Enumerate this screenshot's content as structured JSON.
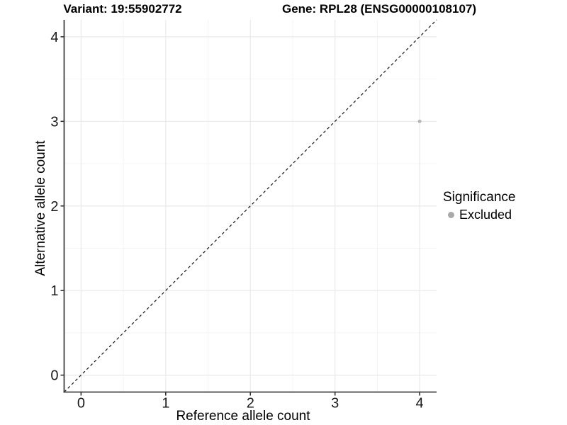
{
  "chart_data": {
    "type": "scatter",
    "titles": {
      "variant": "Variant: 19:55902772",
      "gene": "Gene: RPL28 (ENSG00000108107)"
    },
    "xlabel": "Reference allele count",
    "ylabel": "Alternative allele count",
    "xlim": [
      -0.2,
      4.2
    ],
    "ylim": [
      -0.2,
      4.2
    ],
    "x_ticks": [
      0,
      1,
      2,
      3,
      4
    ],
    "y_ticks": [
      0,
      1,
      2,
      3,
      4
    ],
    "x_minor_gridlines": [
      0.5,
      1.5,
      2.5,
      3.5
    ],
    "y_minor_gridlines": [
      0.5,
      1.5,
      2.5,
      3.5
    ],
    "grid": "major+minor",
    "identity_line": {
      "style": "dashed",
      "equation": "y = x",
      "color": "#141414"
    },
    "series": [
      {
        "name": "Excluded",
        "color": "#b8b8b8",
        "points": [
          {
            "x": 4,
            "y": 3
          }
        ]
      }
    ],
    "legend": {
      "title": "Significance",
      "position": "right",
      "entries": [
        {
          "label": "Excluded",
          "color": "#a9a9a9",
          "marker": "circle"
        }
      ]
    },
    "style": {
      "background": "#ffffff",
      "grid_major_color": "#e9e9e9",
      "grid_minor_color": "#f4f4f4",
      "axis_color": "#404040",
      "tick_color": "#333333",
      "tick_label_color": "#1a1a1a"
    }
  }
}
